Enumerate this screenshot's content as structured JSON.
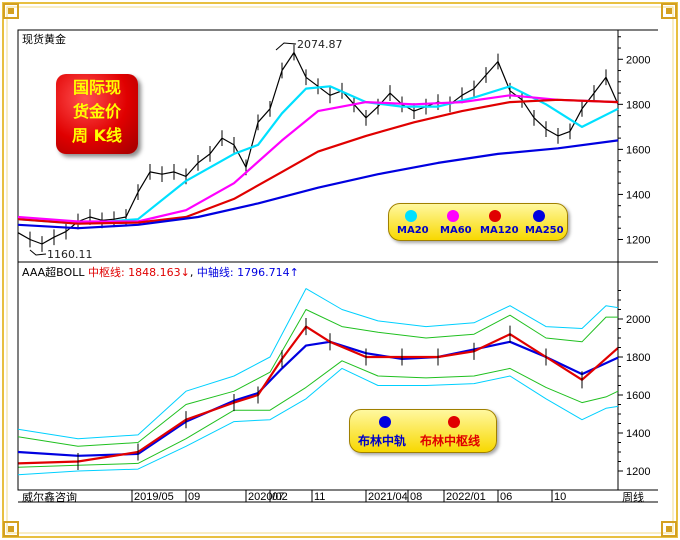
{
  "title": "现货黄金",
  "badge_lines": [
    "国际现",
    "货金价",
    "周 K线"
  ],
  "top_annotations": {
    "high": "2074.87",
    "low": "1160.11"
  },
  "indicator_header": {
    "name": "AAA超BOLL",
    "mid_label": "中枢线: 1848.163",
    "mid_arrow": "↓",
    "sep": ",",
    "rail_label": "中轴线: 1796.714",
    "rail_arrow": "↑"
  },
  "ma_legend": [
    {
      "label": "MA20",
      "color": "#00e0ff"
    },
    {
      "label": "MA60",
      "color": "#ff00ff"
    },
    {
      "label": "MA120",
      "color": "#e00000"
    },
    {
      "label": "MA250",
      "color": "#0000e0"
    }
  ],
  "boll_legend": [
    {
      "label": "布林中轨",
      "color": "#0000e0"
    },
    {
      "label": "布林中枢线",
      "color": "#e00000"
    }
  ],
  "footer": {
    "source": "威尔鑫咨询",
    "period": "周线"
  },
  "chart_data": [
    {
      "type": "line",
      "title": "现货黄金",
      "ylim": [
        1100,
        2130
      ],
      "y_ticks": [
        1200,
        1400,
        1600,
        1800,
        2000
      ],
      "x_ticks": [
        "2019/05",
        "09",
        "2020/02",
        "07",
        "11",
        "2021/04",
        "08",
        "2022/01",
        "06",
        "10"
      ],
      "x_tick_pos": [
        0.19,
        0.28,
        0.38,
        0.42,
        0.49,
        0.58,
        0.65,
        0.71,
        0.8,
        0.89
      ],
      "series": [
        {
          "name": "price",
          "color": "#000000",
          "x": [
            0,
            0.02,
            0.04,
            0.06,
            0.08,
            0.1,
            0.12,
            0.14,
            0.16,
            0.18,
            0.2,
            0.22,
            0.24,
            0.26,
            0.28,
            0.3,
            0.32,
            0.34,
            0.36,
            0.38,
            0.4,
            0.42,
            0.44,
            0.46,
            0.48,
            0.5,
            0.52,
            0.54,
            0.56,
            0.58,
            0.6,
            0.62,
            0.64,
            0.66,
            0.68,
            0.7,
            0.72,
            0.74,
            0.76,
            0.78,
            0.8,
            0.82,
            0.84,
            0.86,
            0.88,
            0.9,
            0.92,
            0.94,
            0.96,
            0.98,
            1.0
          ],
          "values": [
            1230,
            1200,
            1180,
            1210,
            1235,
            1280,
            1300,
            1285,
            1290,
            1300,
            1410,
            1500,
            1490,
            1500,
            1480,
            1540,
            1580,
            1650,
            1620,
            1520,
            1720,
            1780,
            1950,
            2030,
            1920,
            1880,
            1840,
            1860,
            1800,
            1740,
            1790,
            1850,
            1800,
            1770,
            1790,
            1810,
            1800,
            1840,
            1870,
            1930,
            1990,
            1860,
            1820,
            1740,
            1690,
            1660,
            1680,
            1780,
            1850,
            1920,
            1800
          ]
        },
        {
          "name": "MA20",
          "color": "#00e0ff",
          "x": [
            0,
            0.1,
            0.2,
            0.28,
            0.36,
            0.4,
            0.44,
            0.48,
            0.52,
            0.58,
            0.64,
            0.7,
            0.76,
            0.82,
            0.88,
            0.94,
            1.0
          ],
          "values": [
            1290,
            1270,
            1290,
            1460,
            1580,
            1620,
            1760,
            1870,
            1880,
            1810,
            1790,
            1790,
            1830,
            1880,
            1800,
            1700,
            1780
          ]
        },
        {
          "name": "MA60",
          "color": "#ff00ff",
          "x": [
            0,
            0.1,
            0.2,
            0.28,
            0.36,
            0.44,
            0.5,
            0.58,
            0.66,
            0.74,
            0.82,
            0.9,
            1.0
          ],
          "values": [
            1300,
            1280,
            1280,
            1330,
            1450,
            1640,
            1770,
            1810,
            1800,
            1810,
            1840,
            1820,
            1810
          ]
        },
        {
          "name": "MA120",
          "color": "#e00000",
          "x": [
            0,
            0.1,
            0.2,
            0.28,
            0.36,
            0.44,
            0.5,
            0.58,
            0.66,
            0.74,
            0.82,
            0.9,
            1.0
          ],
          "values": [
            1290,
            1270,
            1275,
            1300,
            1380,
            1500,
            1590,
            1660,
            1720,
            1770,
            1810,
            1820,
            1810
          ]
        },
        {
          "name": "MA250",
          "color": "#0000e0",
          "x": [
            0,
            0.1,
            0.2,
            0.3,
            0.4,
            0.5,
            0.6,
            0.7,
            0.8,
            0.9,
            1.0
          ],
          "values": [
            1265,
            1250,
            1265,
            1300,
            1360,
            1430,
            1490,
            1540,
            1580,
            1605,
            1640
          ]
        }
      ]
    },
    {
      "type": "line",
      "title": "AAA超BOLL",
      "ylim": [
        1100,
        2300
      ],
      "y_ticks": [
        1200,
        1400,
        1600,
        1800,
        2000
      ],
      "series": [
        {
          "name": "布林中轨",
          "color": "#0000e0",
          "x": [
            0,
            0.1,
            0.2,
            0.28,
            0.36,
            0.4,
            0.44,
            0.48,
            0.52,
            0.58,
            0.64,
            0.7,
            0.76,
            0.82,
            0.88,
            0.94,
            1.0
          ],
          "values": [
            1300,
            1280,
            1290,
            1460,
            1570,
            1610,
            1740,
            1860,
            1880,
            1820,
            1790,
            1800,
            1840,
            1880,
            1800,
            1710,
            1797
          ]
        },
        {
          "name": "布林中枢线",
          "color": "#e00000",
          "x": [
            0,
            0.1,
            0.2,
            0.28,
            0.36,
            0.4,
            0.44,
            0.48,
            0.52,
            0.58,
            0.64,
            0.7,
            0.76,
            0.82,
            0.88,
            0.94,
            1.0
          ],
          "values": [
            1240,
            1250,
            1300,
            1470,
            1560,
            1600,
            1790,
            1960,
            1880,
            1800,
            1800,
            1800,
            1830,
            1920,
            1800,
            1680,
            1848
          ]
        },
        {
          "name": "upper-green",
          "color": "#20c020",
          "x": [
            0,
            0.1,
            0.2,
            0.28,
            0.36,
            0.42,
            0.48,
            0.54,
            0.6,
            0.68,
            0.76,
            0.82,
            0.88,
            0.94,
            0.98,
            1.0
          ],
          "values": [
            1380,
            1330,
            1350,
            1550,
            1620,
            1720,
            2050,
            1960,
            1930,
            1900,
            1920,
            2020,
            1900,
            1880,
            2010,
            2010
          ]
        },
        {
          "name": "lower-green",
          "color": "#20c020",
          "x": [
            0,
            0.1,
            0.2,
            0.28,
            0.36,
            0.42,
            0.48,
            0.54,
            0.6,
            0.68,
            0.76,
            0.82,
            0.88,
            0.94,
            0.98,
            1.0
          ],
          "values": [
            1220,
            1230,
            1240,
            1370,
            1520,
            1520,
            1640,
            1780,
            1700,
            1690,
            1700,
            1740,
            1640,
            1560,
            1590,
            1620
          ]
        },
        {
          "name": "upper-cyan",
          "color": "#00d0ff",
          "x": [
            0,
            0.1,
            0.2,
            0.28,
            0.36,
            0.42,
            0.48,
            0.54,
            0.6,
            0.68,
            0.76,
            0.82,
            0.88,
            0.94,
            0.98,
            1.0
          ],
          "values": [
            1420,
            1370,
            1390,
            1620,
            1700,
            1800,
            2160,
            2050,
            1990,
            1960,
            1980,
            2070,
            1960,
            1950,
            2070,
            2060
          ]
        },
        {
          "name": "lower-cyan",
          "color": "#00d0ff",
          "x": [
            0,
            0.1,
            0.2,
            0.28,
            0.36,
            0.42,
            0.48,
            0.54,
            0.6,
            0.68,
            0.76,
            0.82,
            0.88,
            0.94,
            0.98,
            1.0
          ],
          "values": [
            1180,
            1200,
            1210,
            1330,
            1460,
            1470,
            1580,
            1740,
            1650,
            1650,
            1660,
            1700,
            1580,
            1470,
            1530,
            1540
          ]
        }
      ]
    }
  ]
}
